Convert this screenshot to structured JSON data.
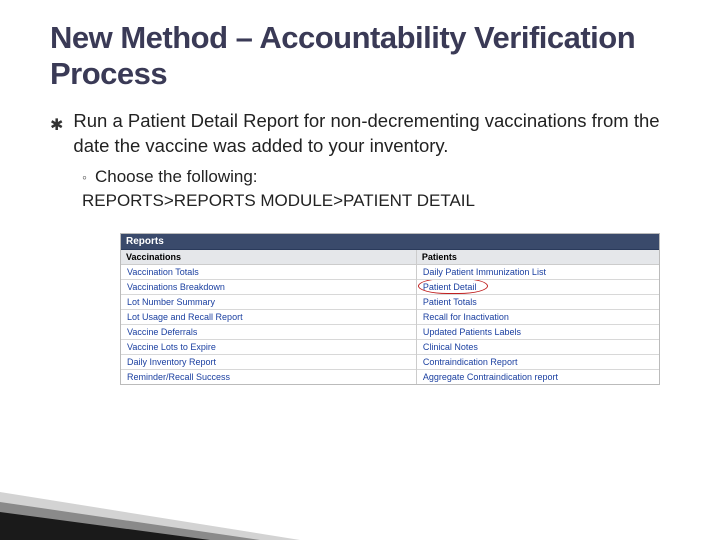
{
  "title": "New Method – Accountability Verification Process",
  "bullet": "Run a Patient Detail Report for non-decrementing vaccinations from the date the vaccine was added to your inventory.",
  "sub_label": "Choose the following:",
  "nav_path": "REPORTS>REPORTS MODULE>PATIENT DETAIL",
  "reports": {
    "header": "Reports",
    "col_left_header": "Vaccinations",
    "col_right_header": "Patients",
    "left_items": [
      "Vaccination Totals",
      "Vaccinations Breakdown",
      "Lot Number Summary",
      "Lot Usage and Recall Report",
      "Vaccine Deferrals",
      "Vaccine Lots to Expire",
      "Daily Inventory Report",
      "Reminder/Recall Success"
    ],
    "right_items": [
      "Daily Patient Immunization List",
      "Patient Detail",
      "Patient Totals",
      "Recall for Inactivation",
      "Updated Patients Labels",
      "Clinical Notes",
      "Contraindication Report",
      "Aggregate Contraindication report"
    ],
    "highlight_right_index": 1
  },
  "style": {
    "title_color": "#3a3a56",
    "link_color": "#1a3fa0",
    "header_bg": "#3a4a6b",
    "circle_color": "#c02020"
  }
}
